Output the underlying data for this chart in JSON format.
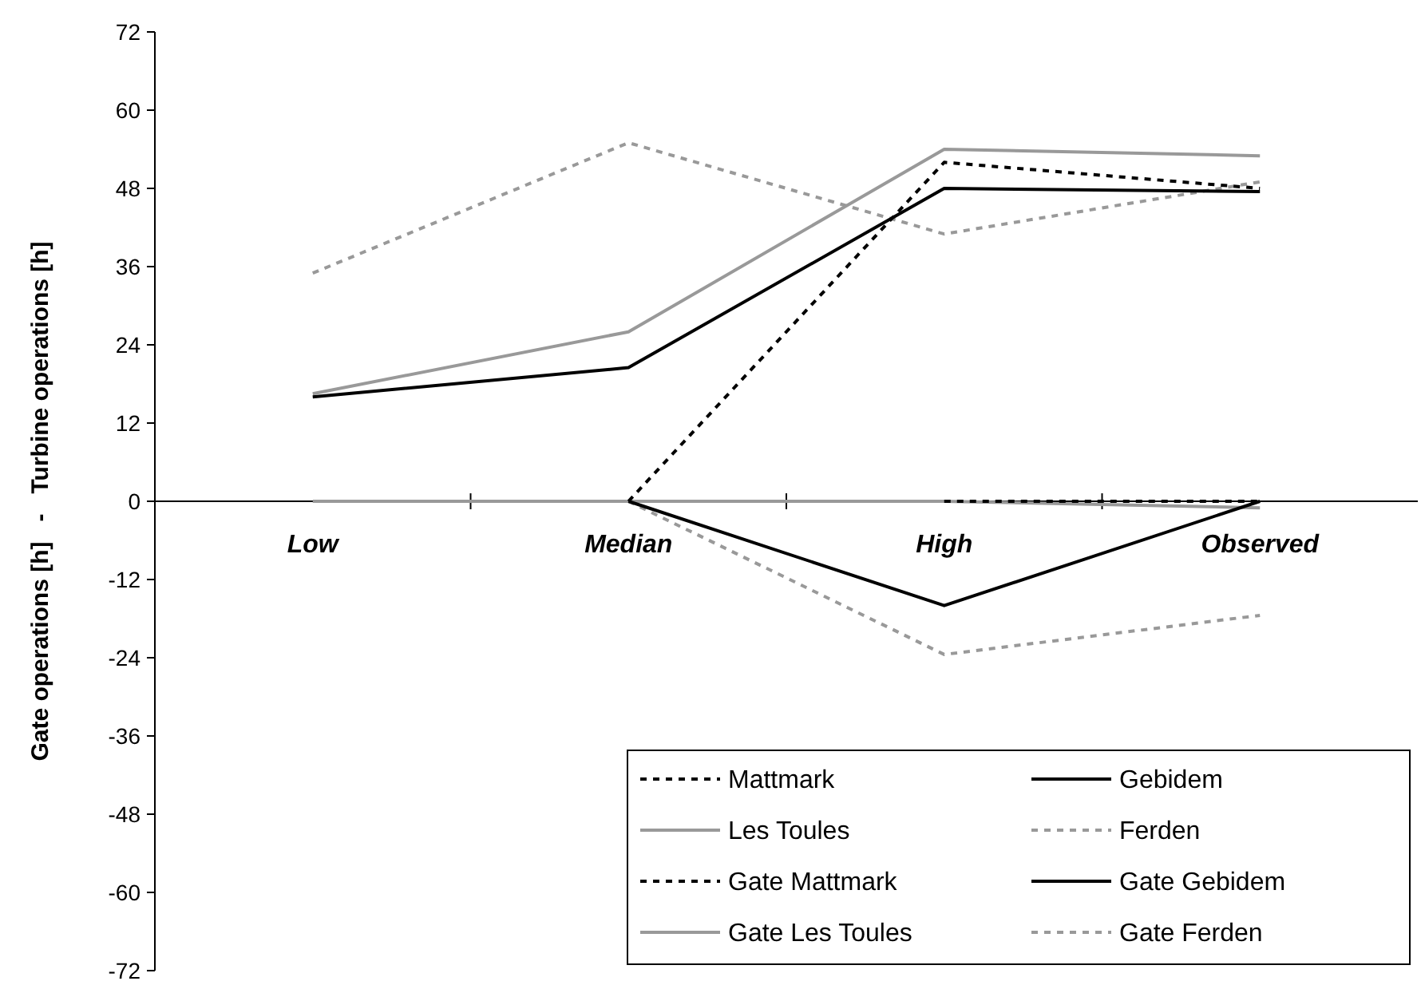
{
  "chart_data": {
    "type": "line",
    "ylabel": "Gate operations [h]   -   Turbine operations [h]",
    "categories": [
      "Low",
      "Median",
      "High",
      "Observed"
    ],
    "ylim": [
      -72,
      72
    ],
    "yticks": [
      -72,
      -60,
      -48,
      -36,
      -24,
      -12,
      0,
      12,
      24,
      36,
      48,
      60,
      72
    ],
    "grid": false,
    "legend": "bottom right",
    "series": [
      {
        "name": "Mattmark",
        "color": "#000000",
        "line_style": "dashed",
        "values": [
          null,
          0,
          52,
          48
        ]
      },
      {
        "name": "Gebidem",
        "color": "#000000",
        "line_style": "solid",
        "values": [
          16,
          20.5,
          48,
          47.5
        ]
      },
      {
        "name": "Les Toules",
        "color": "#999999",
        "line_style": "solid",
        "values": [
          16.5,
          26,
          54,
          53
        ]
      },
      {
        "name": "Ferden",
        "color": "#999999",
        "line_style": "dashed",
        "values": [
          35,
          55,
          41,
          49
        ]
      },
      {
        "name": "Gate Mattmark",
        "color": "#000000",
        "line_style": "dashed",
        "values": [
          null,
          null,
          0,
          0
        ]
      },
      {
        "name": "Gate Gebidem",
        "color": "#000000",
        "line_style": "solid",
        "values": [
          null,
          0,
          -16,
          0
        ]
      },
      {
        "name": "Gate Les Toules",
        "color": "#999999",
        "line_style": "solid",
        "values": [
          0,
          0,
          0,
          -1
        ]
      },
      {
        "name": "Gate Ferden",
        "color": "#999999",
        "line_style": "dashed",
        "values": [
          null,
          0,
          -23.5,
          -17.5
        ]
      }
    ]
  }
}
